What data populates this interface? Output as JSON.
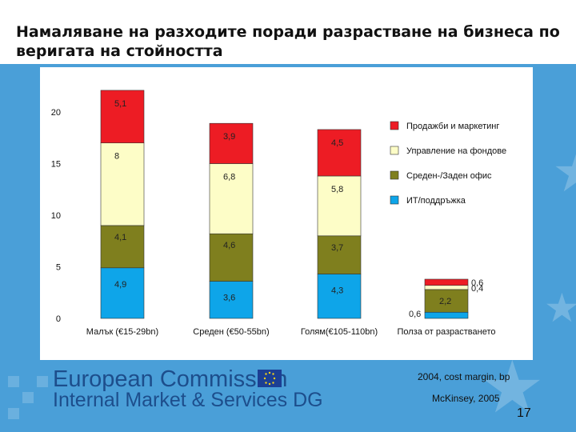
{
  "title": "Намаляване на разходите поради разрастване на бизнеса по веригата на стойността",
  "footer": {
    "logo_line1": "European Commission",
    "logo_line2": "Internal Market & Services DG",
    "source_note": "2004, cost margin, bp",
    "author_note": "McKinsey, 2005",
    "page_number": "17"
  },
  "colors": {
    "background_band": "#4a9fd8",
    "logo_text": "#1d4e8c",
    "series": [
      "#0ea5e9",
      "#7f7f1e",
      "#fdfdc7",
      "#ed1c24"
    ]
  },
  "chart_data": {
    "type": "bar",
    "stacked": true,
    "categories": [
      "Малък (€15-29bn)",
      "Среден (€50-55bn)",
      "Голям(€105-110bn)",
      "Полза от разрастването"
    ],
    "series": [
      {
        "name": "ИТ/поддръжка",
        "values": [
          4.9,
          3.6,
          4.3,
          0.6
        ],
        "labels": [
          "4,9",
          "3,6",
          "4,3",
          "0,6"
        ]
      },
      {
        "name": "Среден-/Заден офис",
        "values": [
          4.1,
          4.6,
          3.7,
          2.2
        ],
        "labels": [
          "4,1",
          "4,6",
          "3,7",
          "2,2"
        ]
      },
      {
        "name": "Управление на фондове",
        "values": [
          8,
          6.8,
          5.8,
          0.4
        ],
        "labels": [
          "8",
          "6,8",
          "5,8",
          "0,4"
        ]
      },
      {
        "name": "Продажби и маркетинг",
        "values": [
          5.1,
          3.9,
          4.5,
          0.6
        ],
        "labels": [
          "5,1",
          "3,9",
          "4,5",
          "0,6"
        ]
      }
    ],
    "legend_order": [
      "Продажби и маркетинг",
      "Управление на фондове",
      "Среден-/Заден офис",
      "ИТ/поддръжка"
    ],
    "ylim": [
      0,
      20
    ],
    "yticks": [
      0,
      5,
      10,
      15,
      20
    ],
    "grid": false,
    "legend_position": "top-right"
  }
}
